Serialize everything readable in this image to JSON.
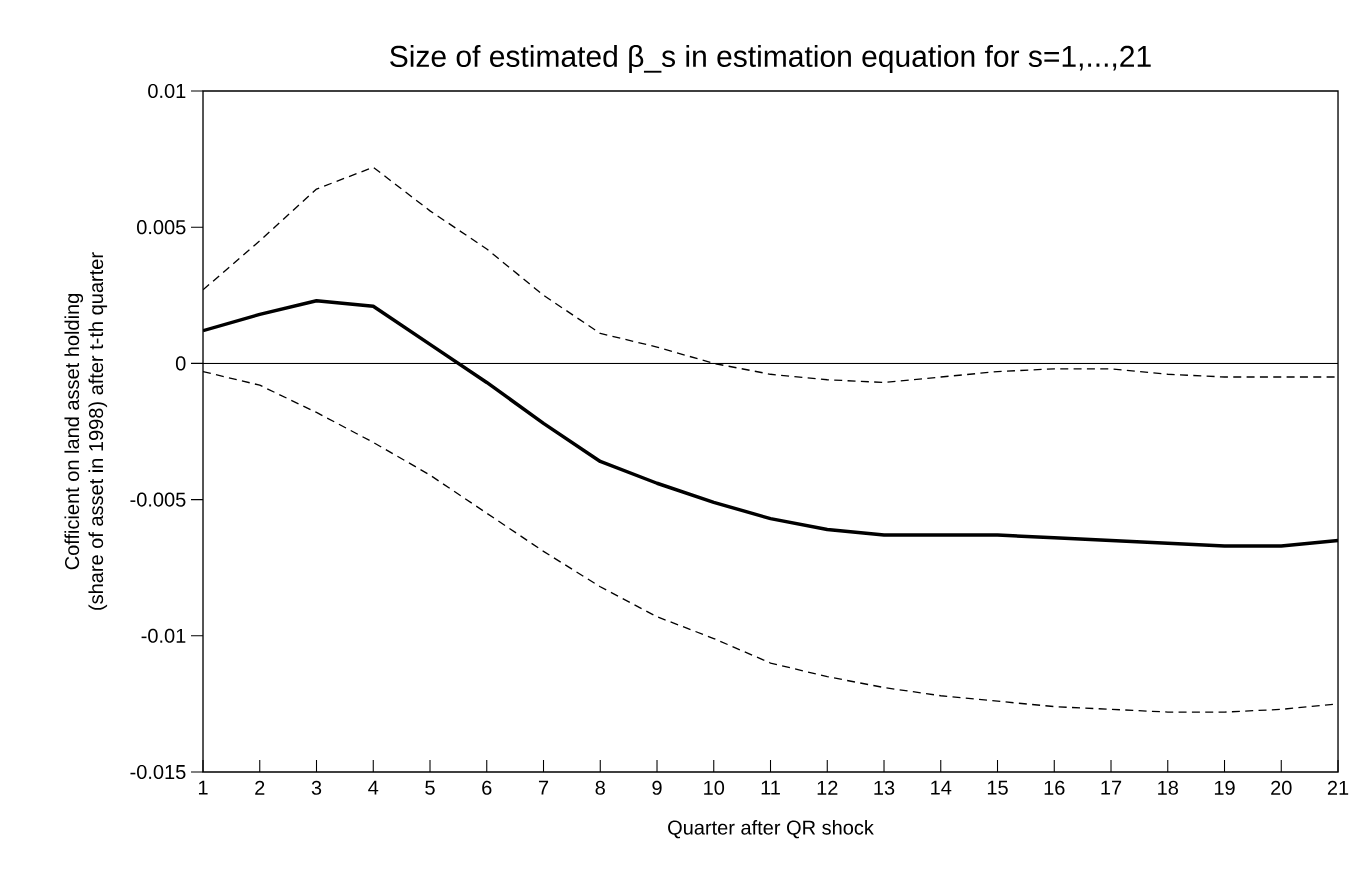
{
  "chart_data": {
    "type": "line",
    "title": "Size of estimated β_s in estimation equation for s=1,...,21",
    "xlabel": "Quarter after QR shock",
    "ylabel": "Cofficient on land asset holding\n(share of asset in 1998) after t-th quarter",
    "categories": [
      "1",
      "2",
      "3",
      "4",
      "5",
      "6",
      "7",
      "8",
      "9",
      "10",
      "11",
      "12",
      "13",
      "14",
      "15",
      "16",
      "17",
      "18",
      "19",
      "20",
      "21"
    ],
    "series": [
      {
        "color": "#000000",
        "line_style": "solid",
        "values": [
          0.0012,
          0.0018,
          0.0023,
          0.0021,
          0.0007,
          -0.0007,
          -0.0022,
          -0.0036,
          -0.0044,
          -0.0051,
          -0.0057,
          -0.0061,
          -0.0063,
          -0.0063,
          -0.0063,
          -0.0064,
          -0.0065,
          -0.0066,
          -0.0067,
          -0.0067,
          -0.0065
        ]
      },
      {
        "color": "#000000",
        "line_style": "dashed",
        "values": [
          0.0027,
          0.0045,
          0.0064,
          0.0072,
          0.0056,
          0.0042,
          0.0025,
          0.0011,
          0.0006,
          0.0,
          -0.0004,
          -0.0006,
          -0.0007,
          -0.0005,
          -0.0003,
          -0.0002,
          -0.0002,
          -0.0004,
          -0.0005,
          -0.0005,
          -0.0005
        ]
      },
      {
        "color": "#000000",
        "line_style": "dashed",
        "values": [
          -0.0003,
          -0.0008,
          -0.0018,
          -0.0029,
          -0.0041,
          -0.0055,
          -0.0069,
          -0.0082,
          -0.0093,
          -0.0101,
          -0.011,
          -0.0115,
          -0.0119,
          -0.0122,
          -0.0124,
          -0.0126,
          -0.0127,
          -0.0128,
          -0.0128,
          -0.0127,
          -0.0125
        ]
      }
    ],
    "ylim": [
      -0.015,
      0.01
    ],
    "yticks": [
      -0.015,
      -0.01,
      -0.005,
      0,
      0.005,
      0.01
    ],
    "ref_lines": [
      {
        "axis": "y",
        "value": 0,
        "color": "#000000",
        "line_style": "solid"
      }
    ],
    "marker": "none"
  }
}
